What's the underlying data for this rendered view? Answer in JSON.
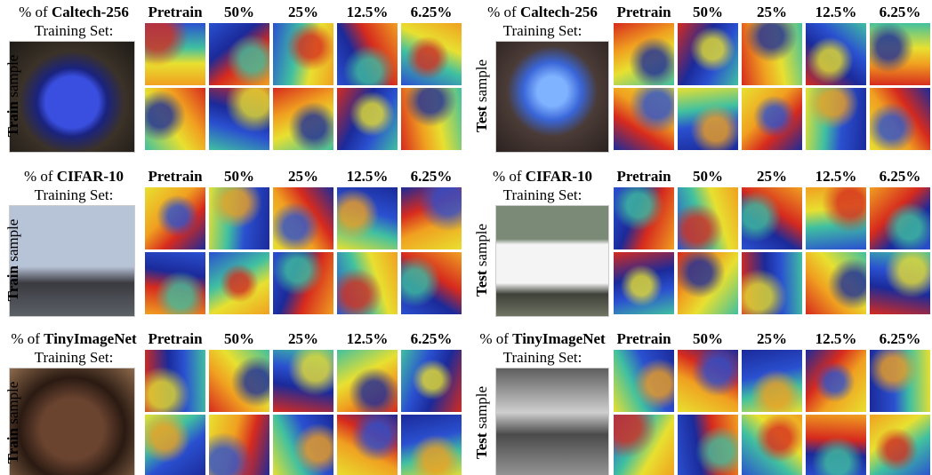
{
  "panels": [
    {
      "title_prefix": "% of",
      "dataset": "Caltech-256",
      "title_line2": "Training Set:",
      "side_bold": "Train",
      "side_rest": "sample",
      "columns": [
        "Pretrain",
        "50%",
        "25%",
        "12.5%",
        "6.25%"
      ]
    },
    {
      "title_prefix": "% of",
      "dataset": "Caltech-256",
      "title_line2": "Training Set:",
      "side_bold": "Test",
      "side_rest": "sample",
      "columns": [
        "Pretrain",
        "50%",
        "25%",
        "12.5%",
        "6.25%"
      ]
    },
    {
      "title_prefix": "% of",
      "dataset": "CIFAR-10",
      "title_line2": "Training Set:",
      "side_bold": "Train",
      "side_rest": "sample",
      "columns": [
        "Pretrain",
        "50%",
        "25%",
        "12.5%",
        "6.25%"
      ]
    },
    {
      "title_prefix": "% of",
      "dataset": "CIFAR-10",
      "title_line2": "Training Set:",
      "side_bold": "Test",
      "side_rest": "sample",
      "columns": [
        "Pretrain",
        "50%",
        "25%",
        "12.5%",
        "6.25%"
      ]
    },
    {
      "title_prefix": "% of",
      "dataset": "TinyImageNet",
      "title_line2": "Training Set:",
      "side_bold": "Train",
      "side_rest": "sample",
      "columns": [
        "Pretrain",
        "50%",
        "25%",
        "12.5%",
        "6.25%"
      ]
    },
    {
      "title_prefix": "% of",
      "dataset": "TinyImageNet",
      "title_line2": "Training Set:",
      "side_bold": "Test",
      "side_rest": "sample",
      "columns": [
        "Pretrain",
        "50%",
        "25%",
        "12.5%",
        "6.25%"
      ]
    }
  ]
}
